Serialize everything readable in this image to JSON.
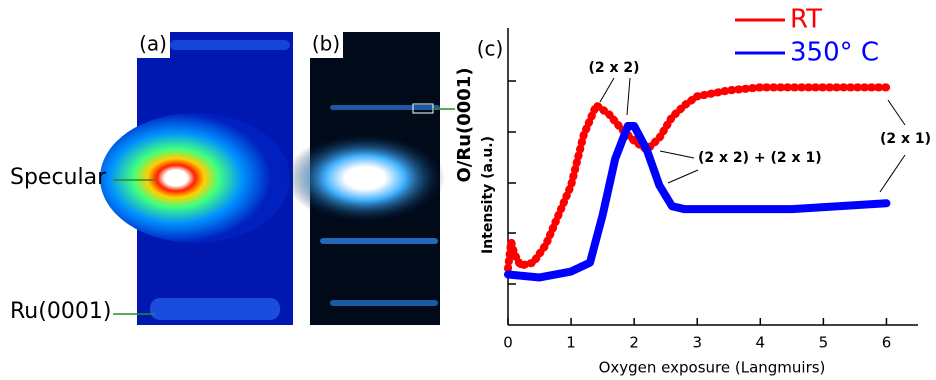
{
  "panels": {
    "a": {
      "label": "(a)"
    },
    "b": {
      "label": "(b)"
    }
  },
  "image_labels": [
    "Specular",
    "Ru(0001)"
  ],
  "chart_data": {
    "type": "line",
    "panel_label": "(c)",
    "y_label_top": "O/Ru(0001)",
    "y_label": "Intensity (a.u.)",
    "x_label": "Oxygen exposure (Langmuirs)",
    "xlim": [
      0,
      6.5
    ],
    "xticks": [
      0,
      1,
      2,
      3,
      4,
      5,
      6
    ],
    "ylim": [
      0,
      1
    ],
    "series": [
      {
        "name": "RT",
        "color": "#ff0000",
        "x": [
          0,
          0.05,
          0.1,
          0.2,
          0.4,
          0.6,
          0.8,
          1.0,
          1.2,
          1.4,
          1.6,
          1.8,
          2.0,
          2.2,
          2.4,
          2.6,
          2.8,
          3.0,
          3.5,
          4.0,
          5.0,
          6.0
        ],
        "values": [
          0.19,
          0.28,
          0.24,
          0.2,
          0.21,
          0.27,
          0.37,
          0.47,
          0.64,
          0.74,
          0.71,
          0.66,
          0.62,
          0.59,
          0.63,
          0.7,
          0.74,
          0.77,
          0.79,
          0.8,
          0.8,
          0.8
        ]
      },
      {
        "name": "350° C",
        "color": "#0000ff",
        "x": [
          0,
          0.5,
          1.0,
          1.3,
          1.5,
          1.7,
          1.9,
          2.0,
          2.2,
          2.4,
          2.6,
          2.8,
          3.5,
          4.5,
          6.0
        ],
        "values": [
          0.17,
          0.16,
          0.18,
          0.21,
          0.37,
          0.56,
          0.67,
          0.67,
          0.59,
          0.47,
          0.4,
          0.39,
          0.39,
          0.39,
          0.41
        ]
      }
    ],
    "annotations": [
      "(2 x 2)",
      "(2 x 2) + (2 x 1)",
      "(2 x 1)"
    ]
  }
}
